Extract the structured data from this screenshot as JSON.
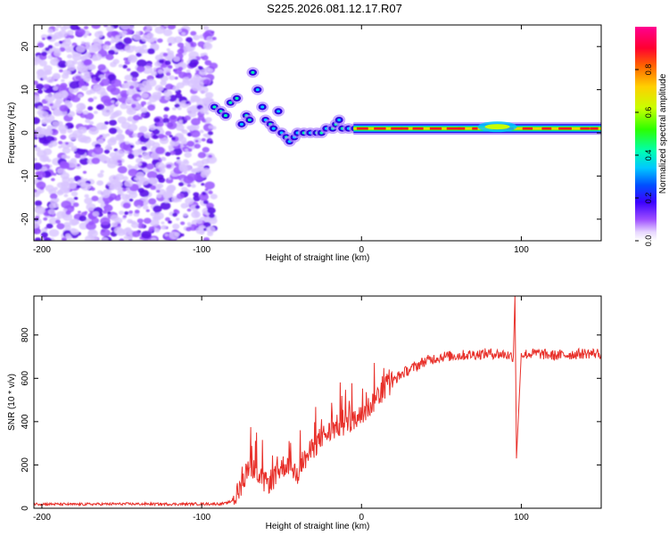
{
  "title": "S225.2026.081.12.17.R07",
  "chart_data": [
    {
      "type": "heatmap",
      "xlabel": "Height of straight line (km)",
      "ylabel": "Frequency (Hz)",
      "xlim": [
        -205,
        150
      ],
      "ylim": [
        -25,
        25
      ],
      "xticks": [
        -200,
        -100,
        0,
        100
      ],
      "yticks": [
        -20,
        -10,
        0,
        10,
        20
      ],
      "colorbar": {
        "label": "Normalized spectral amplitude",
        "range": [
          0,
          1
        ],
        "ticks": [
          0.0,
          0.2,
          0.4,
          0.6,
          0.8
        ],
        "tick_labels": [
          "0.0",
          "0.2",
          "0.4",
          "0.6",
          "0.8"
        ]
      },
      "features": [
        {
          "name": "noise",
          "x_range": [
            -205,
            -92
          ],
          "y_range": [
            -25,
            25
          ],
          "amplitude": 0.12
        },
        {
          "name": "transition",
          "points": [
            [
              -92,
              6
            ],
            [
              -88,
              5
            ],
            [
              -85,
              4
            ],
            [
              -82,
              7
            ],
            [
              -78,
              8
            ],
            [
              -75,
              2
            ],
            [
              -72,
              4
            ],
            [
              -70,
              3
            ],
            [
              -68,
              14
            ],
            [
              -65,
              10
            ],
            [
              -62,
              6
            ],
            [
              -60,
              3
            ],
            [
              -57,
              2
            ],
            [
              -55,
              1
            ],
            [
              -52,
              5
            ],
            [
              -50,
              0
            ],
            [
              -47,
              -1
            ],
            [
              -45,
              -2
            ],
            [
              -42,
              -1
            ],
            [
              -40,
              0
            ],
            [
              -36,
              0
            ],
            [
              -32,
              0
            ],
            [
              -28,
              0
            ],
            [
              -25,
              0
            ],
            [
              -22,
              1
            ],
            [
              -18,
              1
            ],
            [
              -16,
              2
            ],
            [
              -14,
              3
            ],
            [
              -12,
              1
            ],
            [
              -8,
              1
            ],
            [
              -4,
              1
            ]
          ],
          "amplitude": 0.35
        },
        {
          "name": "carrier-line",
          "y": 1,
          "x_range": [
            -5,
            150
          ],
          "amplitude": 0.95
        }
      ]
    },
    {
      "type": "line",
      "xlabel": "Height of straight line (km)",
      "ylabel": "SNR (10 * v/v)",
      "xlim": [
        -205,
        150
      ],
      "ylim": [
        0,
        980
      ],
      "xticks": [
        -200,
        -100,
        0,
        100
      ],
      "yticks": [
        0,
        200,
        400,
        600,
        800
      ],
      "series": [
        {
          "name": "SNR",
          "color": "#e8302a",
          "x": [
            -205,
            -180,
            -150,
            -120,
            -100,
            -90,
            -85,
            -82,
            -78,
            -75,
            -72,
            -70,
            -68,
            -65,
            -62,
            -60,
            -55,
            -50,
            -45,
            -42,
            -40,
            -35,
            -30,
            -25,
            -20,
            -15,
            -10,
            -5,
            0,
            5,
            10,
            15,
            20,
            25,
            30,
            40,
            50,
            60,
            70,
            80,
            90,
            95,
            96,
            97,
            100,
            110,
            120,
            130,
            140,
            150
          ],
          "y": [
            20,
            18,
            20,
            19,
            20,
            20,
            22,
            30,
            60,
            110,
            170,
            220,
            180,
            150,
            130,
            110,
            140,
            190,
            210,
            170,
            160,
            230,
            280,
            330,
            350,
            380,
            390,
            400,
            430,
            470,
            520,
            560,
            590,
            620,
            640,
            680,
            700,
            705,
            710,
            715,
            710,
            700,
            980,
            230,
            710,
            715,
            705,
            710,
            715,
            715
          ],
          "noise": 25
        }
      ]
    }
  ]
}
